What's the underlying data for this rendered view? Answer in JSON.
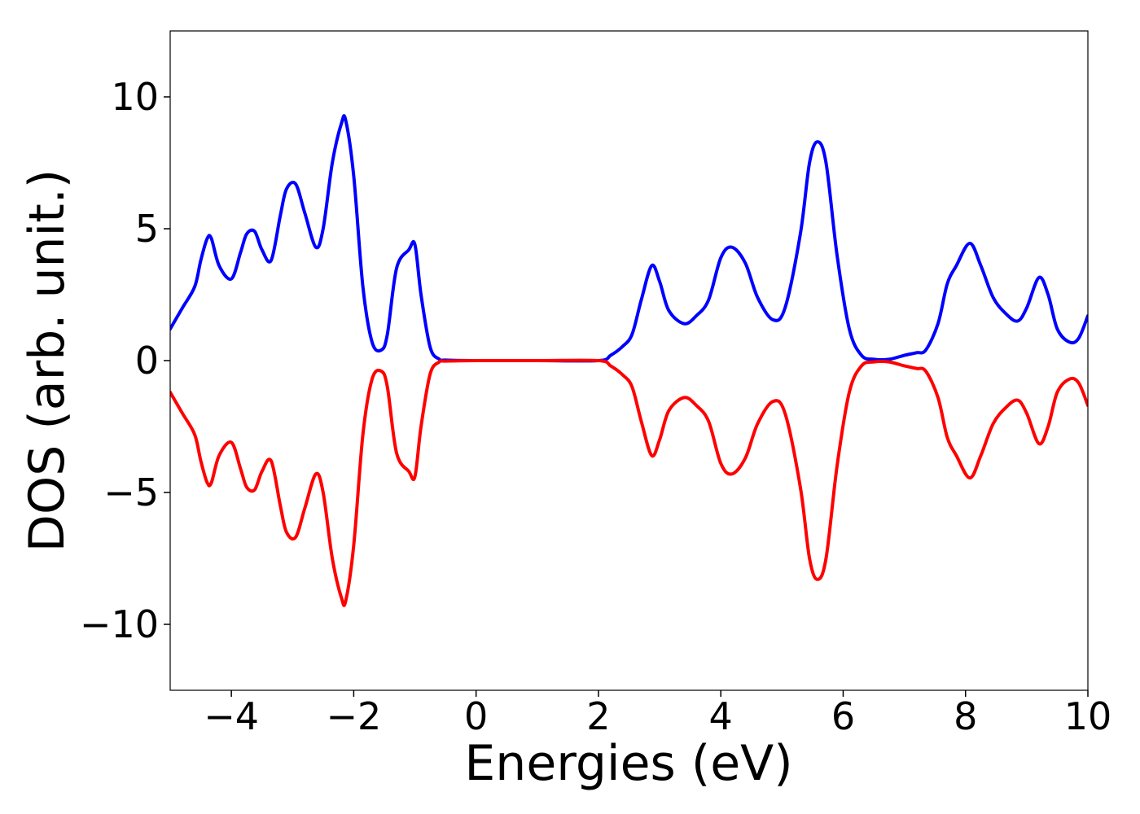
{
  "chart_data": {
    "type": "line",
    "title": "",
    "xlabel": "Energies (eV)",
    "ylabel": "DOS (arb. unit.)",
    "xlim": [
      -5,
      10
    ],
    "ylim": [
      -12.5,
      12.5
    ],
    "xticks": [
      -4,
      -2,
      0,
      2,
      4,
      6,
      8,
      10
    ],
    "xtick_labels": [
      "−4",
      "−2",
      "0",
      "2",
      "4",
      "6",
      "8",
      "10"
    ],
    "yticks": [
      -10,
      -5,
      0,
      5,
      10
    ],
    "ytick_labels": [
      "−10",
      "−5",
      "0",
      "5",
      "10"
    ],
    "grid": false,
    "legend": "none",
    "series": [
      {
        "color": "#0000ff",
        "x": [
          -5.0,
          -4.8,
          -4.6,
          -4.5,
          -4.4,
          -4.33,
          -4.2,
          -4.0,
          -3.85,
          -3.75,
          -3.62,
          -3.5,
          -3.35,
          -3.2,
          -3.1,
          -2.95,
          -2.8,
          -2.62,
          -2.5,
          -2.35,
          -2.2,
          -2.13,
          -2.0,
          -1.85,
          -1.7,
          -1.55,
          -1.45,
          -1.3,
          -1.1,
          -1.0,
          -0.9,
          -0.75,
          -0.6,
          -0.5,
          0.0,
          1.0,
          2.0,
          2.2,
          2.4,
          2.55,
          2.7,
          2.87,
          3.0,
          3.15,
          3.4,
          3.6,
          3.8,
          4.0,
          4.18,
          4.4,
          4.6,
          4.85,
          5.05,
          5.3,
          5.45,
          5.58,
          5.72,
          5.9,
          6.1,
          6.3,
          6.5,
          6.75,
          7.0,
          7.2,
          7.35,
          7.55,
          7.7,
          7.85,
          8.07,
          8.25,
          8.45,
          8.65,
          8.85,
          9.0,
          9.2,
          9.35,
          9.5,
          9.7,
          9.85,
          10.0
        ],
        "values": [
          1.2,
          2.0,
          2.8,
          3.8,
          4.6,
          4.65,
          3.6,
          3.1,
          4.1,
          4.8,
          4.9,
          4.2,
          3.8,
          5.5,
          6.5,
          6.7,
          5.6,
          4.3,
          5.0,
          7.5,
          9.0,
          9.1,
          7.0,
          2.8,
          0.7,
          0.4,
          1.0,
          3.5,
          4.2,
          4.4,
          2.5,
          0.5,
          0.05,
          0.02,
          0.0,
          0.0,
          0.0,
          0.2,
          0.55,
          1.0,
          2.3,
          3.6,
          3.0,
          1.9,
          1.4,
          1.7,
          2.3,
          3.9,
          4.3,
          3.7,
          2.4,
          1.55,
          2.0,
          4.8,
          7.5,
          8.3,
          7.5,
          4.0,
          1.2,
          0.2,
          0.05,
          0.05,
          0.2,
          0.3,
          0.4,
          1.4,
          2.9,
          3.6,
          4.45,
          3.6,
          2.4,
          1.8,
          1.5,
          2.0,
          3.15,
          2.5,
          1.2,
          0.7,
          0.85,
          1.7
        ]
      },
      {
        "color": "#ff0000",
        "x": [
          -5.0,
          -4.8,
          -4.6,
          -4.5,
          -4.4,
          -4.33,
          -4.2,
          -4.0,
          -3.85,
          -3.75,
          -3.62,
          -3.5,
          -3.35,
          -3.2,
          -3.1,
          -2.95,
          -2.8,
          -2.62,
          -2.5,
          -2.35,
          -2.2,
          -2.13,
          -2.0,
          -1.85,
          -1.7,
          -1.55,
          -1.45,
          -1.3,
          -1.1,
          -1.0,
          -0.9,
          -0.75,
          -0.6,
          -0.5,
          0.0,
          1.0,
          2.0,
          2.2,
          2.4,
          2.55,
          2.7,
          2.87,
          3.0,
          3.15,
          3.4,
          3.6,
          3.8,
          4.0,
          4.18,
          4.4,
          4.6,
          4.85,
          5.05,
          5.3,
          5.45,
          5.58,
          5.72,
          5.9,
          6.1,
          6.3,
          6.5,
          6.75,
          7.0,
          7.2,
          7.35,
          7.55,
          7.7,
          7.85,
          8.07,
          8.25,
          8.45,
          8.65,
          8.85,
          9.0,
          9.2,
          9.35,
          9.5,
          9.7,
          9.85,
          10.0
        ],
        "values": [
          -1.2,
          -2.0,
          -2.8,
          -3.8,
          -4.6,
          -4.65,
          -3.6,
          -3.1,
          -4.1,
          -4.8,
          -4.9,
          -4.2,
          -3.8,
          -5.5,
          -6.5,
          -6.7,
          -5.6,
          -4.3,
          -5.0,
          -7.5,
          -9.0,
          -9.1,
          -7.0,
          -2.8,
          -0.7,
          -0.4,
          -1.0,
          -3.5,
          -4.2,
          -4.4,
          -2.5,
          -0.5,
          -0.05,
          -0.02,
          0.0,
          0.0,
          0.0,
          -0.2,
          -0.55,
          -1.0,
          -2.3,
          -3.6,
          -3.0,
          -1.9,
          -1.4,
          -1.7,
          -2.3,
          -3.9,
          -4.3,
          -3.7,
          -2.4,
          -1.55,
          -2.0,
          -4.8,
          -7.5,
          -8.3,
          -7.5,
          -4.0,
          -1.2,
          -0.2,
          -0.05,
          -0.05,
          -0.2,
          -0.3,
          -0.4,
          -1.4,
          -2.9,
          -3.6,
          -4.45,
          -3.6,
          -2.4,
          -1.8,
          -1.5,
          -2.0,
          -3.15,
          -2.5,
          -1.2,
          -0.7,
          -0.85,
          -1.7
        ]
      }
    ]
  }
}
